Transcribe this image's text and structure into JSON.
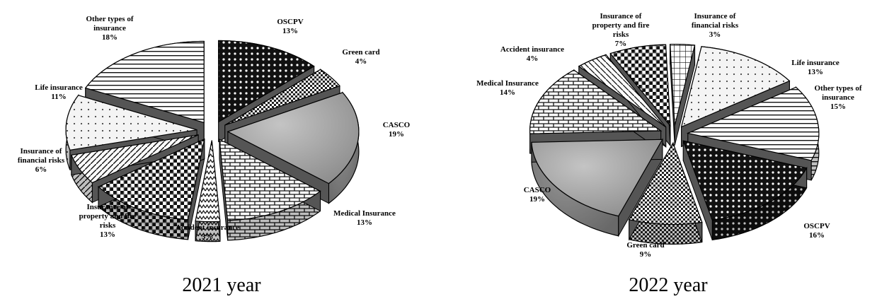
{
  "chart_data": [
    {
      "type": "pie",
      "title": "2021 year",
      "categories": [
        "OSCPV",
        "Green card",
        "CASCO",
        "Medical Insurance",
        "Accident insurance",
        "Insurance of property and fire risks",
        "Insurance of financial risks",
        "Life insurance",
        "Other types of insurance"
      ],
      "values": [
        13,
        4,
        19,
        13,
        3,
        13,
        6,
        11,
        18
      ],
      "labels": [
        "13%",
        "4%",
        "19%",
        "13%",
        "3%",
        "13%",
        "6%",
        "11%",
        "18%"
      ],
      "colors": [
        "#111111",
        "#9a9a9a",
        "#a6a6a6",
        "#e8e8e8",
        "#cfcfcf",
        "#3a3a3a",
        "#d8d8d8",
        "#f2f2f2",
        "#ffffff"
      ]
    },
    {
      "type": "pie",
      "title": "2022 year",
      "categories": [
        "Insurance of financial risks",
        "Life insurance",
        "Other types of insurance",
        "OSCPV",
        "Green card",
        "CASCO",
        "Medical Insurance",
        "Accident insurance",
        "Insurance of property and fire risks"
      ],
      "values": [
        3,
        13,
        15,
        16,
        9,
        19,
        14,
        4,
        7
      ],
      "labels": [
        "3%",
        "13%",
        "15%",
        "16%",
        "9%",
        "19%",
        "14%",
        "4%",
        "7%"
      ],
      "colors": [
        "#ffffff",
        "#eeeeee",
        "#ffffff",
        "#111111",
        "#8a8a8a",
        "#a6a6a6",
        "#e6e6e6",
        "#f5f5f5",
        "#202020"
      ]
    }
  ]
}
